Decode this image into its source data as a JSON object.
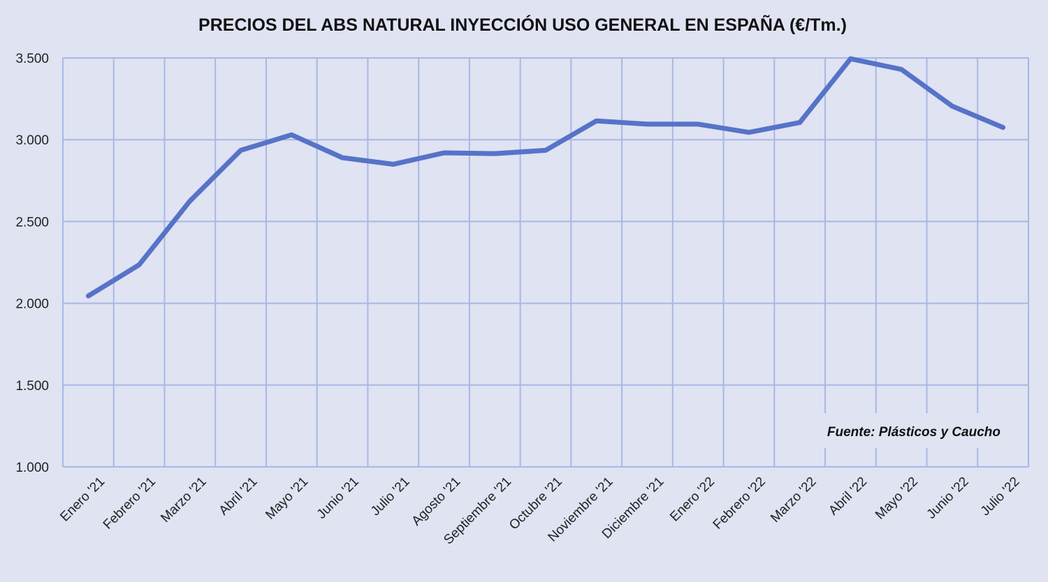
{
  "chart_data": {
    "type": "line",
    "title": "PRECIOS DEL ABS NATURAL INYECCIÓN  USO GENERAL EN ESPAÑA (€/Tm.)",
    "xlabel": "",
    "ylabel": "",
    "categories": [
      "Enero '21",
      "Febrero '21",
      "Marzo '21",
      "Abril '21",
      "Mayo '21",
      "Junio '21",
      "Julio '21",
      "Agosto '21",
      "Septiembre '21",
      "Octubre '21",
      "Noviembre '21",
      "Diciembre '21",
      "Enero '22",
      "Febrero '22",
      "Marzo '22",
      "Abril '22",
      "Mayo '22",
      "Junio '22",
      "Julio '22"
    ],
    "series": [
      {
        "values": [
          2045,
          2235,
          2625,
          2935,
          3030,
          2890,
          2850,
          2920,
          2915,
          2935,
          3115,
          3095,
          3095,
          3045,
          3105,
          3495,
          3430,
          3205,
          3075
        ]
      }
    ],
    "ylim": [
      1000,
      3500
    ],
    "yticks": [
      1000,
      1500,
      2000,
      2500,
      3000,
      3500
    ],
    "ytick_labels": [
      "1.000",
      "1.500",
      "2.000",
      "2.500",
      "3.000",
      "3.500"
    ],
    "grid": true,
    "annotation": "Fuente: Plásticos y Caucho",
    "colors": {
      "line": "#5673c8",
      "grid": "#a9b7e6",
      "background": "#dfe3f2"
    }
  }
}
